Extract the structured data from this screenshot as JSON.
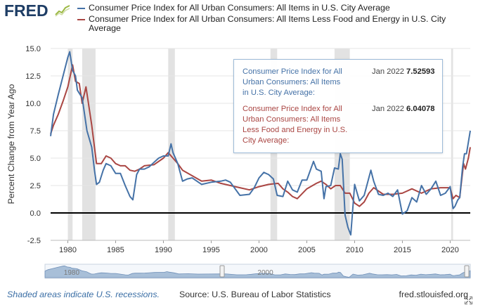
{
  "header": {
    "logo_text": "FRED",
    "logo_mark_icon": "line-chart-icon",
    "brand_color": "#1e3d65"
  },
  "chart_data": {
    "type": "line",
    "ylabel": "Percent Change from Year Ago",
    "xlabel": "",
    "ylim": [
      -2.5,
      15.0
    ],
    "xlim": [
      1978.2,
      2022.1
    ],
    "yticks": [
      "15.0",
      "12.5",
      "10.0",
      "7.5",
      "5.0",
      "2.5",
      "0.0",
      "-2.5"
    ],
    "ytick_values": [
      15.0,
      12.5,
      10.0,
      7.5,
      5.0,
      2.5,
      0.0,
      -2.5
    ],
    "xticks": [
      "1980",
      "1985",
      "1990",
      "1995",
      "2000",
      "2005",
      "2010",
      "2015",
      "2020"
    ],
    "xtick_values": [
      1980,
      1985,
      1990,
      1995,
      2000,
      2005,
      2010,
      2015,
      2020
    ],
    "grid": true,
    "zero_line": true,
    "recessions": [
      [
        1980.0,
        1980.5
      ],
      [
        1981.5,
        1982.9
      ],
      [
        1990.5,
        1991.2
      ],
      [
        2001.2,
        2001.9
      ],
      [
        2007.9,
        2009.5
      ],
      [
        2020.1,
        2020.3
      ]
    ],
    "series": [
      {
        "name": "Consumer Price Index for All Urban Consumers: All Items in U.S. City Average",
        "color": "#4572a7",
        "x": [
          1978.2,
          1978.5,
          1979.0,
          1979.5,
          1980.0,
          1980.2,
          1980.5,
          1980.8,
          1981.0,
          1981.5,
          1982.0,
          1982.5,
          1982.8,
          1983.0,
          1983.3,
          1983.7,
          1984.0,
          1984.5,
          1985.0,
          1985.5,
          1986.0,
          1986.5,
          1986.8,
          1987.2,
          1987.5,
          1988.0,
          1988.5,
          1989.0,
          1989.5,
          1990.0,
          1990.5,
          1990.8,
          1991.0,
          1991.5,
          1992.0,
          1992.5,
          1993.0,
          1994.0,
          1995.0,
          1996.0,
          1996.5,
          1997.0,
          1998.0,
          1999.0,
          1999.5,
          2000.0,
          2000.5,
          2001.0,
          2001.5,
          2001.9,
          2002.5,
          2003.0,
          2003.5,
          2004.0,
          2004.5,
          2005.0,
          2005.7,
          2006.0,
          2006.5,
          2006.8,
          2007.0,
          2007.5,
          2007.9,
          2008.3,
          2008.5,
          2008.7,
          2009.0,
          2009.3,
          2009.6,
          2010.0,
          2010.5,
          2011.0,
          2011.7,
          2012.0,
          2012.5,
          2013.0,
          2013.5,
          2014.0,
          2014.5,
          2015.0,
          2015.5,
          2016.0,
          2016.5,
          2017.0,
          2017.5,
          2018.0,
          2018.5,
          2019.0,
          2019.5,
          2020.0,
          2020.3,
          2020.5,
          2020.8,
          2021.0,
          2021.3,
          2021.5,
          2021.7,
          2022.1
        ],
        "values": [
          7.0,
          9.0,
          10.8,
          12.5,
          14.2,
          14.7,
          13.0,
          12.5,
          11.2,
          10.5,
          7.5,
          6.0,
          3.8,
          2.6,
          2.8,
          3.9,
          4.5,
          4.3,
          3.6,
          3.6,
          2.5,
          1.5,
          1.2,
          3.5,
          4.0,
          4.0,
          4.2,
          4.6,
          5.0,
          5.2,
          5.2,
          6.3,
          5.5,
          4.5,
          2.9,
          3.1,
          3.2,
          2.6,
          2.8,
          2.9,
          3.0,
          2.8,
          1.6,
          1.7,
          2.3,
          3.2,
          3.7,
          3.5,
          3.1,
          1.6,
          1.5,
          2.9,
          2.1,
          1.9,
          3.0,
          3.0,
          4.7,
          4.0,
          3.8,
          1.3,
          2.4,
          2.5,
          4.1,
          4.0,
          5.4,
          4.9,
          -0.2,
          -1.3,
          -2.0,
          2.6,
          1.1,
          1.6,
          3.9,
          2.9,
          1.7,
          1.6,
          1.8,
          1.5,
          2.1,
          -0.1,
          0.2,
          1.4,
          1.0,
          2.5,
          1.7,
          2.2,
          2.9,
          1.6,
          1.8,
          2.4,
          0.4,
          0.6,
          1.2,
          1.4,
          4.2,
          5.4,
          5.4,
          7.5
        ]
      },
      {
        "name": "Consumer Price Index for All Urban Consumers: All Items Less Food and Energy in U.S. City Average",
        "color": "#aa4643",
        "x": [
          1978.2,
          1978.5,
          1979.0,
          1979.5,
          1980.0,
          1980.5,
          1980.8,
          1981.2,
          1981.5,
          1981.9,
          1982.5,
          1983.0,
          1983.5,
          1984.0,
          1984.5,
          1985.0,
          1985.5,
          1986.0,
          1986.5,
          1987.0,
          1987.5,
          1988.0,
          1989.0,
          1990.0,
          1990.5,
          1991.0,
          1991.5,
          1992.0,
          1993.0,
          1994.0,
          1995.0,
          1996.0,
          1997.0,
          1998.0,
          1999.0,
          2000.0,
          2001.0,
          2002.0,
          2002.5,
          2003.0,
          2003.5,
          2004.0,
          2005.0,
          2006.0,
          2006.5,
          2007.0,
          2007.5,
          2008.0,
          2008.5,
          2009.0,
          2009.5,
          2010.0,
          2010.5,
          2011.0,
          2011.5,
          2012.0,
          2013.0,
          2014.0,
          2015.0,
          2016.0,
          2017.0,
          2018.0,
          2019.0,
          2019.5,
          2020.0,
          2020.3,
          2020.6,
          2021.0,
          2021.2,
          2021.4,
          2021.6,
          2021.9,
          2022.1
        ],
        "values": [
          7.2,
          8.0,
          9.0,
          10.2,
          11.5,
          13.5,
          12.0,
          11.8,
          10.0,
          11.5,
          8.0,
          4.5,
          4.5,
          5.2,
          5.0,
          4.5,
          4.3,
          4.3,
          3.9,
          3.8,
          4.0,
          4.3,
          4.4,
          5.0,
          5.5,
          5.0,
          4.5,
          3.9,
          3.4,
          2.9,
          3.0,
          2.7,
          2.5,
          2.3,
          2.1,
          2.4,
          2.6,
          2.7,
          2.2,
          1.9,
          1.5,
          1.3,
          2.2,
          2.7,
          2.9,
          2.6,
          2.2,
          2.5,
          2.5,
          1.8,
          1.8,
          0.9,
          0.6,
          1.0,
          1.8,
          2.3,
          1.7,
          1.7,
          1.8,
          2.2,
          1.8,
          2.2,
          2.3,
          2.3,
          2.3,
          1.3,
          1.6,
          1.4,
          3.0,
          4.5,
          4.0,
          5.0,
          6.0
        ]
      }
    ]
  },
  "tooltip": {
    "rows": [
      {
        "name": "Consumer Price Index for All Urban Consumers: All Items in U.S. City Average:",
        "date": "Jan 2022",
        "value": "7.52593",
        "color": "#4572a7"
      },
      {
        "name": "Consumer Price Index for All Urban Consumers: All Items Less Food and Energy in U.S. City Average:",
        "date": "Jan 2022",
        "value": "6.04078",
        "color": "#aa4643"
      }
    ]
  },
  "navigator": {
    "labels": [
      "1980",
      "2000"
    ],
    "fill_color": "#a8bfd8"
  },
  "footer": {
    "note": "Shaded areas indicate U.S. recessions.",
    "source": "Source: U.S. Bureau of Labor Statistics",
    "site": "fred.stlouisfed.org",
    "expand_icon": "fullscreen-icon"
  }
}
